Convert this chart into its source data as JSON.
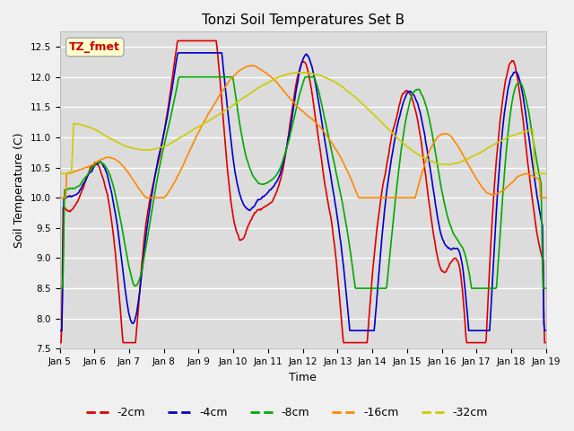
{
  "title": "Tonzi Soil Temperatures Set B",
  "xlabel": "Time",
  "ylabel": "Soil Temperature (C)",
  "ylim": [
    7.5,
    12.75
  ],
  "annotation_text": "TZ_fmet",
  "annotation_color": "#cc0000",
  "annotation_bg": "#ffffcc",
  "annotation_border": "#aaaaaa",
  "bg_color": "#dcdcdc",
  "grid_color": "#ffffff",
  "series_colors": {
    "-2cm": "#dd0000",
    "-4cm": "#0000cc",
    "-8cm": "#00aa00",
    "-16cm": "#ff8800",
    "-32cm": "#cccc00"
  },
  "legend_labels": [
    "-2cm",
    "-4cm",
    "-8cm",
    "-16cm",
    "-32cm"
  ],
  "x_tick_labels": [
    "Jan 5",
    "Jan 6",
    "Jan 7",
    "Jan 8",
    "Jan 9",
    "Jan 10",
    "Jan 11",
    "Jan 12",
    "Jan 13",
    "Jan 14",
    "Jan 15",
    "Jan 16",
    "Jan 17",
    "Jan 18",
    "Jan 19"
  ],
  "num_points": 700
}
